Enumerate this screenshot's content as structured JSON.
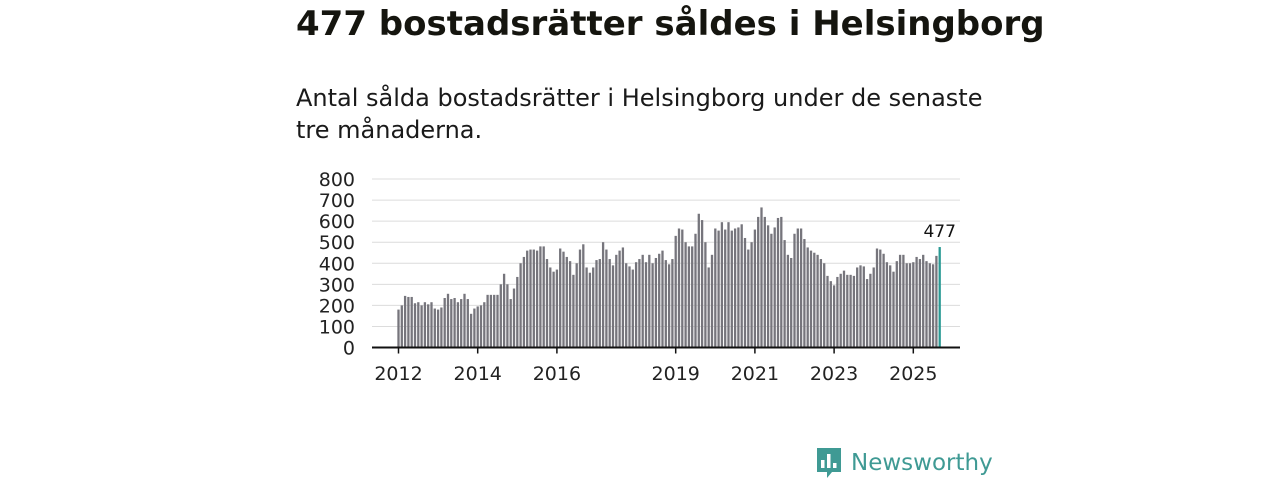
{
  "page": {
    "title": "477 bostadsrätter såldes i Helsingborg",
    "subtitle": "Antal sålda bostadsrätter i Helsingborg under de senaste tre månaderna."
  },
  "brand": {
    "name": "Newsworthy",
    "color": "#3f9a94"
  },
  "colors": {
    "bar": "#76757c",
    "highlight": "#2a9a94"
  },
  "chart_data": {
    "type": "bar",
    "title": "",
    "xlabel": "",
    "ylabel": "",
    "ylim": [
      0,
      800
    ],
    "yticks": [
      0,
      100,
      200,
      300,
      400,
      500,
      600,
      700,
      800
    ],
    "x_tick_labels": [
      {
        "label": "2012",
        "index": 0
      },
      {
        "label": "2014",
        "index": 24
      },
      {
        "label": "2016",
        "index": 48
      },
      {
        "label": "2019",
        "index": 84
      },
      {
        "label": "2021",
        "index": 108
      },
      {
        "label": "2023",
        "index": 132
      },
      {
        "label": "2025",
        "index": 156
      }
    ],
    "start": "2012-01",
    "end": "2025-08",
    "highlight_label": "477",
    "values": [
      180,
      200,
      245,
      240,
      240,
      210,
      215,
      200,
      215,
      205,
      215,
      185,
      180,
      190,
      235,
      255,
      230,
      235,
      215,
      230,
      255,
      230,
      160,
      185,
      195,
      200,
      215,
      250,
      250,
      250,
      250,
      300,
      350,
      300,
      230,
      280,
      335,
      400,
      430,
      460,
      465,
      465,
      460,
      480,
      480,
      420,
      380,
      360,
      370,
      470,
      455,
      430,
      410,
      345,
      400,
      465,
      490,
      380,
      355,
      380,
      415,
      420,
      500,
      465,
      420,
      390,
      440,
      460,
      475,
      400,
      385,
      370,
      405,
      420,
      440,
      405,
      440,
      400,
      425,
      445,
      460,
      415,
      395,
      420,
      530,
      565,
      560,
      500,
      480,
      480,
      540,
      635,
      605,
      500,
      380,
      440,
      565,
      555,
      595,
      560,
      595,
      555,
      565,
      570,
      585,
      520,
      465,
      500,
      560,
      620,
      665,
      620,
      580,
      540,
      570,
      615,
      620,
      510,
      440,
      425,
      540,
      565,
      565,
      515,
      475,
      460,
      450,
      440,
      420,
      400,
      340,
      315,
      295,
      335,
      350,
      365,
      345,
      345,
      340,
      380,
      390,
      385,
      325,
      350,
      380,
      470,
      465,
      445,
      405,
      390,
      360,
      410,
      440,
      440,
      400,
      400,
      405,
      430,
      420,
      440,
      410,
      400,
      395,
      435,
      477
    ]
  }
}
